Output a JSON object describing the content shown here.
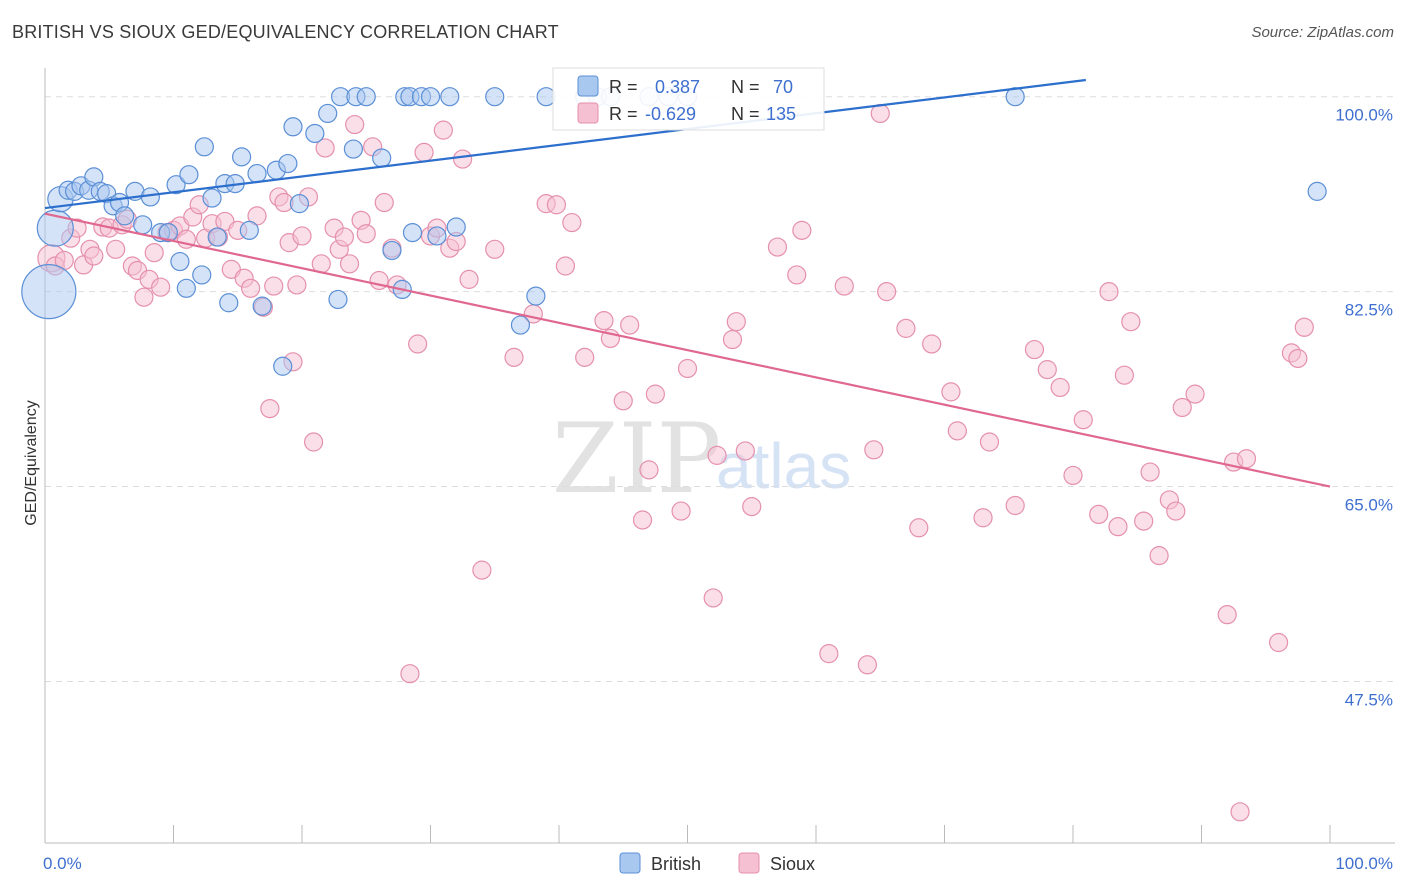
{
  "header": {
    "title": "BRITISH VS SIOUX GED/EQUIVALENCY CORRELATION CHART",
    "source": "Source: ZipAtlas.com"
  },
  "watermark": {
    "zip": "ZIP",
    "atlas": "atlas"
  },
  "legend_top": {
    "british": {
      "r_label": "R =",
      "r_value": "0.387",
      "n_label": "N =",
      "n_value": "70"
    },
    "sioux": {
      "r_label": "R =",
      "r_value": "-0.629",
      "n_label": "N =",
      "n_value": "135"
    }
  },
  "legend_bottom": {
    "british": "British",
    "sioux": "Sioux"
  },
  "colors": {
    "british_fill": "#a9c8f0",
    "british_stroke": "#5b8fd6",
    "british_line": "#2c6fcc",
    "sioux_fill": "#f5c0d2",
    "sioux_stroke": "#e590ad",
    "sioux_line": "#e0688f",
    "label_blue": "#3e6fcf",
    "grid": "#dddddd"
  },
  "chart_data": {
    "type": "scatter",
    "title": "BRITISH VS SIOUX GED/EQUIVALENCY CORRELATION CHART",
    "xlabel": "",
    "ylabel": "GED/Equivalency",
    "xlim": [
      0,
      100
    ],
    "ylim": [
      33,
      101.5
    ],
    "x_tick_labels": [
      "0.0%",
      "100.0%"
    ],
    "y_ticks": [
      47.5,
      65.0,
      82.5,
      100.0
    ],
    "y_tick_labels": [
      "47.5%",
      "65.0%",
      "82.5%",
      "100.0%"
    ],
    "grid": true,
    "legend_position": "top-center",
    "series": [
      {
        "name": "British",
        "r": 0.387,
        "n": 70,
        "trend": {
          "x": [
            0,
            81
          ],
          "y": [
            90.0,
            101.5
          ]
        },
        "points": [
          [
            0.3,
            82.5,
            3
          ],
          [
            0.8,
            88.2,
            2
          ],
          [
            1.2,
            90.8,
            1.4
          ],
          [
            1.8,
            91.6,
            1
          ],
          [
            2.3,
            91.5,
            1
          ],
          [
            2.8,
            92.0,
            1
          ],
          [
            3.4,
            91.6,
            1
          ],
          [
            3.8,
            92.8,
            1
          ],
          [
            4.3,
            91.5,
            1
          ],
          [
            4.8,
            91.3,
            1
          ],
          [
            5.3,
            90.2,
            1
          ],
          [
            5.8,
            90.5,
            1
          ],
          [
            6.2,
            89.3,
            1
          ],
          [
            7.0,
            91.5,
            1
          ],
          [
            7.6,
            88.5,
            1
          ],
          [
            8.2,
            91.0,
            1
          ],
          [
            9.0,
            87.8,
            1
          ],
          [
            9.6,
            87.8,
            1
          ],
          [
            10.2,
            92.1,
            1
          ],
          [
            10.5,
            85.2,
            1
          ],
          [
            11.0,
            82.8,
            1
          ],
          [
            11.2,
            93.0,
            1
          ],
          [
            12.2,
            84.0,
            1
          ],
          [
            12.4,
            95.5,
            1
          ],
          [
            13.0,
            90.9,
            1
          ],
          [
            13.4,
            87.4,
            1
          ],
          [
            14.0,
            92.2,
            1
          ],
          [
            14.3,
            81.5,
            1
          ],
          [
            14.8,
            92.2,
            1
          ],
          [
            15.3,
            94.6,
            1
          ],
          [
            15.9,
            88.0,
            1
          ],
          [
            16.5,
            93.1,
            1
          ],
          [
            16.9,
            81.2,
            1
          ],
          [
            18.0,
            93.4,
            1
          ],
          [
            18.5,
            75.8,
            1
          ],
          [
            18.9,
            94.0,
            1
          ],
          [
            19.3,
            97.3,
            1
          ],
          [
            19.8,
            90.4,
            1
          ],
          [
            21.0,
            96.7,
            1
          ],
          [
            22.0,
            98.5,
            1
          ],
          [
            22.8,
            81.8,
            1
          ],
          [
            23.0,
            100.0,
            1
          ],
          [
            24.0,
            95.3,
            1
          ],
          [
            24.2,
            100.0,
            1
          ],
          [
            25.0,
            100.0,
            1
          ],
          [
            26.2,
            94.5,
            1
          ],
          [
            27.0,
            86.2,
            1
          ],
          [
            27.8,
            82.7,
            1
          ],
          [
            28.0,
            100.0,
            1
          ],
          [
            28.4,
            100.0,
            1
          ],
          [
            28.6,
            87.8,
            1
          ],
          [
            29.3,
            100.0,
            1
          ],
          [
            30.0,
            100.0,
            1
          ],
          [
            30.5,
            87.5,
            1
          ],
          [
            31.5,
            100.0,
            1
          ],
          [
            32.0,
            88.3,
            1
          ],
          [
            35.0,
            100.0,
            1
          ],
          [
            37.0,
            79.5,
            1
          ],
          [
            38.2,
            82.1,
            1
          ],
          [
            39.0,
            100.0,
            1
          ],
          [
            42.0,
            100.0,
            1
          ],
          [
            43.0,
            100.0,
            1
          ],
          [
            44.0,
            100.0,
            1
          ],
          [
            47.0,
            100.0,
            1
          ],
          [
            48.5,
            100.0,
            1
          ],
          [
            50.0,
            100.0,
            1
          ],
          [
            75.5,
            100.0,
            1
          ],
          [
            99.0,
            91.5,
            1
          ]
        ]
      },
      {
        "name": "Sioux",
        "r": -0.629,
        "n": 135,
        "trend": {
          "x": [
            0,
            100
          ],
          "y": [
            89.5,
            65.0
          ]
        },
        "points": [
          [
            0.5,
            85.5,
            1.5
          ],
          [
            0.8,
            84.8,
            1
          ],
          [
            1.5,
            85.3,
            1
          ],
          [
            2.0,
            87.3,
            1
          ],
          [
            2.5,
            88.2,
            1
          ],
          [
            3.0,
            84.9,
            1
          ],
          [
            3.5,
            86.3,
            1
          ],
          [
            3.8,
            85.7,
            1
          ],
          [
            4.5,
            88.3,
            1
          ],
          [
            5.0,
            88.2,
            1
          ],
          [
            5.5,
            86.3,
            1
          ],
          [
            6.0,
            88.5,
            1
          ],
          [
            6.4,
            89.0,
            1
          ],
          [
            6.8,
            84.8,
            1
          ],
          [
            7.2,
            84.4,
            1
          ],
          [
            7.7,
            82.0,
            1
          ],
          [
            8.1,
            83.6,
            1
          ],
          [
            8.5,
            86.0,
            1
          ],
          [
            9.0,
            82.9,
            1
          ],
          [
            9.5,
            87.8,
            1
          ],
          [
            10.0,
            88.0,
            1
          ],
          [
            10.5,
            88.4,
            1
          ],
          [
            11.0,
            87.2,
            1
          ],
          [
            11.5,
            89.2,
            1
          ],
          [
            12.0,
            90.3,
            1
          ],
          [
            12.5,
            87.3,
            1
          ],
          [
            13.0,
            88.6,
            1
          ],
          [
            13.5,
            87.4,
            1
          ],
          [
            14.0,
            88.8,
            1
          ],
          [
            14.5,
            84.5,
            1
          ],
          [
            15.0,
            88.0,
            1
          ],
          [
            15.5,
            83.7,
            1
          ],
          [
            16.0,
            82.8,
            1
          ],
          [
            16.5,
            89.3,
            1
          ],
          [
            17.0,
            81.1,
            1
          ],
          [
            17.5,
            72.0,
            1
          ],
          [
            17.8,
            83.0,
            1
          ],
          [
            18.2,
            91.0,
            1
          ],
          [
            18.6,
            90.5,
            1
          ],
          [
            19.0,
            86.9,
            1
          ],
          [
            19.3,
            76.2,
            1
          ],
          [
            19.6,
            83.1,
            1
          ],
          [
            20.0,
            87.5,
            1
          ],
          [
            20.5,
            91.0,
            1
          ],
          [
            20.9,
            69.0,
            1
          ],
          [
            21.5,
            85.0,
            1
          ],
          [
            21.8,
            95.4,
            1
          ],
          [
            22.5,
            88.2,
            1
          ],
          [
            22.9,
            86.3,
            1
          ],
          [
            23.3,
            87.4,
            1
          ],
          [
            23.7,
            85.0,
            1
          ],
          [
            24.1,
            97.5,
            1
          ],
          [
            24.6,
            88.9,
            1
          ],
          [
            25.0,
            87.7,
            1
          ],
          [
            25.5,
            95.5,
            1
          ],
          [
            26.0,
            83.5,
            1
          ],
          [
            26.4,
            90.5,
            1
          ],
          [
            27.0,
            86.4,
            1
          ],
          [
            27.4,
            83.1,
            1
          ],
          [
            28.4,
            48.2,
            1
          ],
          [
            29.0,
            77.8,
            1
          ],
          [
            29.5,
            95.0,
            1
          ],
          [
            30.0,
            87.5,
            1
          ],
          [
            30.5,
            88.2,
            1
          ],
          [
            31.0,
            97.0,
            1
          ],
          [
            31.5,
            86.4,
            1
          ],
          [
            32.0,
            87.0,
            1
          ],
          [
            32.5,
            94.4,
            1
          ],
          [
            33.0,
            83.6,
            1
          ],
          [
            34.0,
            57.5,
            1
          ],
          [
            35.0,
            86.3,
            1
          ],
          [
            36.5,
            76.6,
            1
          ],
          [
            38.0,
            80.5,
            1
          ],
          [
            39.0,
            90.4,
            1
          ],
          [
            39.8,
            90.3,
            1
          ],
          [
            40.5,
            84.8,
            1
          ],
          [
            41.0,
            88.7,
            1
          ],
          [
            42.0,
            76.6,
            1
          ],
          [
            43.5,
            79.9,
            1
          ],
          [
            44.0,
            78.3,
            1
          ],
          [
            45.0,
            72.7,
            1
          ],
          [
            45.5,
            79.5,
            1
          ],
          [
            46.5,
            62.0,
            1
          ],
          [
            47.0,
            66.5,
            1
          ],
          [
            47.5,
            73.3,
            1
          ],
          [
            49.5,
            62.8,
            1
          ],
          [
            50.0,
            75.6,
            1
          ],
          [
            52.0,
            55.0,
            1
          ],
          [
            52.3,
            67.8,
            1
          ],
          [
            53.5,
            78.2,
            1
          ],
          [
            53.8,
            79.8,
            1
          ],
          [
            54.5,
            68.2,
            1
          ],
          [
            55.0,
            63.2,
            1
          ],
          [
            57.0,
            86.5,
            1
          ],
          [
            58.5,
            84.0,
            1
          ],
          [
            58.9,
            88.0,
            1
          ],
          [
            61.0,
            50.0,
            1
          ],
          [
            62.2,
            83.0,
            1
          ],
          [
            64.0,
            49.0,
            1
          ],
          [
            64.5,
            68.3,
            1
          ],
          [
            65.0,
            98.5,
            1
          ],
          [
            65.5,
            82.5,
            1
          ],
          [
            67.0,
            79.2,
            1
          ],
          [
            68.0,
            61.3,
            1
          ],
          [
            69.0,
            77.8,
            1
          ],
          [
            70.5,
            73.5,
            1
          ],
          [
            71.0,
            70.0,
            1
          ],
          [
            73.0,
            62.2,
            1
          ],
          [
            73.5,
            69.0,
            1
          ],
          [
            75.5,
            63.3,
            1
          ],
          [
            77.0,
            77.3,
            1
          ],
          [
            78.0,
            75.5,
            1
          ],
          [
            79.0,
            73.9,
            1
          ],
          [
            80.0,
            66.0,
            1
          ],
          [
            80.8,
            71.0,
            1
          ],
          [
            82.0,
            62.5,
            1
          ],
          [
            82.8,
            82.5,
            1
          ],
          [
            83.5,
            61.4,
            1
          ],
          [
            84.0,
            75.0,
            1
          ],
          [
            84.5,
            79.8,
            1
          ],
          [
            85.5,
            61.9,
            1
          ],
          [
            86.0,
            66.3,
            1
          ],
          [
            86.7,
            58.8,
            1
          ],
          [
            87.5,
            63.8,
            1
          ],
          [
            88.0,
            62.8,
            1
          ],
          [
            88.5,
            72.1,
            1
          ],
          [
            89.5,
            73.3,
            1
          ],
          [
            92.0,
            53.5,
            1
          ],
          [
            92.5,
            67.2,
            1
          ],
          [
            93.0,
            35.8,
            1
          ],
          [
            93.5,
            67.5,
            1
          ],
          [
            96.0,
            51.0,
            1
          ],
          [
            97.0,
            77.0,
            1
          ],
          [
            97.5,
            76.5,
            1
          ],
          [
            98.0,
            79.3,
            1
          ]
        ]
      }
    ]
  }
}
